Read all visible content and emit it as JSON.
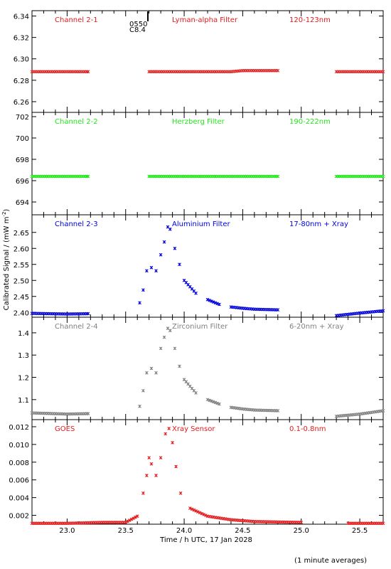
{
  "xlabel": "Time / h UTC, 17 Jan 2028",
  "ylabel": "Calibrated Signal / (mW m",
  "ylabel_sup": "-2",
  "ylabel_close": ")",
  "footer": "(1 minute averages)",
  "event_marker": {
    "x": 23.7,
    "line1": "0550",
    "line2": "C8.4"
  },
  "chart_data": [
    {
      "type": "scatter",
      "channel": "Channel 2-1",
      "filter": "Lyman-alpha Filter",
      "band": "120-123nm",
      "color": "#e41a1c",
      "xlim": [
        22.7,
        25.7
      ],
      "ylim": [
        6.25,
        6.345
      ],
      "yticks": [
        "6.26",
        "6.28",
        "6.30",
        "6.32",
        "6.34"
      ],
      "ytick_values": [
        6.26,
        6.28,
        6.3,
        6.32,
        6.34
      ],
      "x": [
        22.7,
        23.18,
        23.7,
        24.4,
        24.5,
        24.8,
        25.3,
        25.7
      ],
      "y": [
        6.288,
        6.288,
        6.288,
        6.288,
        6.289,
        6.289,
        6.288,
        6.288
      ]
    },
    {
      "type": "scatter",
      "channel": "Channel 2-2",
      "filter": "Herzberg Filter",
      "band": "190-222nm",
      "color": "#22e61a",
      "xlim": [
        22.7,
        25.7
      ],
      "ylim": [
        692.8,
        702.4
      ],
      "yticks": [
        "694",
        "696",
        "698",
        "700",
        "702"
      ],
      "ytick_values": [
        694,
        696,
        698,
        700,
        702
      ],
      "x": [
        22.7,
        23.18,
        23.7,
        24.5,
        24.8,
        25.3,
        25.7
      ],
      "y": [
        696.4,
        696.4,
        696.4,
        696.4,
        696.4,
        696.4,
        696.4
      ]
    },
    {
      "type": "scatter",
      "channel": "Channel 2-3",
      "filter": "Aluminium Filter",
      "band": "17-80nm + Xray",
      "color": "#0000dd",
      "xlim": [
        22.7,
        25.7
      ],
      "ylim": [
        2.385,
        2.705
      ],
      "yticks": [
        "2.40",
        "2.45",
        "2.50",
        "2.55",
        "2.60",
        "2.65"
      ],
      "ytick_values": [
        2.4,
        2.45,
        2.5,
        2.55,
        2.6,
        2.65
      ],
      "x": [
        22.7,
        23.0,
        23.18,
        23.62,
        23.65,
        23.68,
        23.72,
        23.76,
        23.8,
        23.83,
        23.86,
        23.88,
        23.92,
        23.96,
        24.0,
        24.1,
        24.2,
        24.3,
        24.4,
        24.5,
        24.6,
        24.8,
        25.3,
        25.5,
        25.7
      ],
      "y": [
        2.397,
        2.395,
        2.396,
        2.43,
        2.47,
        2.53,
        2.54,
        2.53,
        2.58,
        2.62,
        2.667,
        2.66,
        2.6,
        2.55,
        2.5,
        2.46,
        2.44,
        2.425,
        2.417,
        2.413,
        2.41,
        2.408,
        2.39,
        2.398,
        2.405
      ]
    },
    {
      "type": "scatter",
      "channel": "Channel 2-4",
      "filter": "Zirconium Filter",
      "band": "6-20nm + Xray",
      "color": "#808080",
      "xlim": [
        22.7,
        25.7
      ],
      "ylim": [
        1.01,
        1.47
      ],
      "yticks": [
        "1.1",
        "1.2",
        "1.3",
        "1.4"
      ],
      "ytick_values": [
        1.1,
        1.2,
        1.3,
        1.4
      ],
      "x": [
        22.7,
        23.0,
        23.18,
        23.62,
        23.65,
        23.68,
        23.72,
        23.76,
        23.8,
        23.83,
        23.86,
        23.88,
        23.92,
        23.96,
        24.0,
        24.1,
        24.2,
        24.3,
        24.4,
        24.5,
        24.6,
        24.8,
        25.3,
        25.5,
        25.7
      ],
      "y": [
        1.04,
        1.035,
        1.037,
        1.07,
        1.14,
        1.22,
        1.24,
        1.22,
        1.33,
        1.38,
        1.42,
        1.41,
        1.33,
        1.25,
        1.19,
        1.13,
        1.1,
        1.08,
        1.065,
        1.058,
        1.053,
        1.05,
        1.025,
        1.035,
        1.05
      ]
    },
    {
      "type": "scatter",
      "channel": "GOES",
      "filter": "Xray Sensor",
      "band": "0.1-0.8nm",
      "color": "#e41a1c",
      "xlim": [
        22.7,
        25.7
      ],
      "ylim": [
        0.001,
        0.0128
      ],
      "yticks": [
        "0.002",
        "0.004",
        "0.006",
        "0.008",
        "0.010",
        "0.012"
      ],
      "ytick_values": [
        0.002,
        0.004,
        0.006,
        0.008,
        0.01,
        0.012
      ],
      "x": [
        22.7,
        23.0,
        23.3,
        23.5,
        23.6,
        23.65,
        23.68,
        23.7,
        23.72,
        23.76,
        23.8,
        23.84,
        23.87,
        23.9,
        23.93,
        23.97,
        24.05,
        24.2,
        24.4,
        24.6,
        25.0,
        25.4,
        25.7
      ],
      "y": [
        0.0011,
        0.0011,
        0.0012,
        0.0012,
        0.0019,
        0.0045,
        0.0065,
        0.0085,
        0.0078,
        0.0065,
        0.0085,
        0.0112,
        0.0118,
        0.0102,
        0.0075,
        0.0045,
        0.0028,
        0.0019,
        0.0015,
        0.0013,
        0.0012,
        0.0011,
        0.0011
      ]
    }
  ],
  "xticks": [
    "23.0",
    "23.5",
    "24.0",
    "24.5",
    "25.0",
    "25.5"
  ],
  "xtick_values": [
    23.0,
    23.5,
    24.0,
    24.5,
    25.0,
    25.5
  ]
}
